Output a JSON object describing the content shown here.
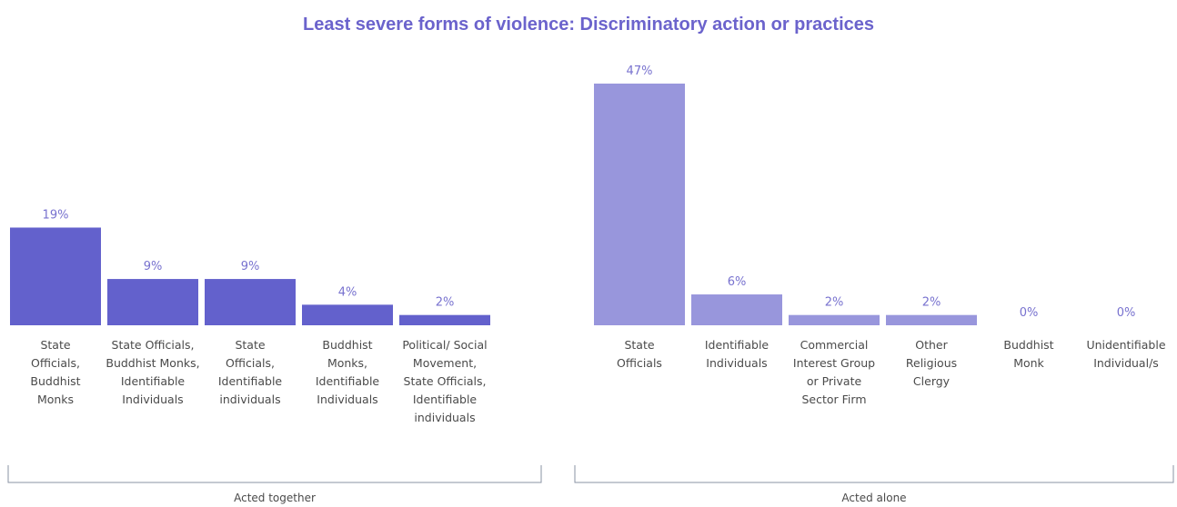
{
  "chart_data": {
    "type": "bar",
    "title": "Least severe forms of violence:  Discriminatory action or practices",
    "ylim": [
      0,
      50
    ],
    "grid": false,
    "unit": "%",
    "groups": [
      {
        "name": "Acted together",
        "color": "#6361cc",
        "categories": [
          [
            "State",
            "Officials,",
            "Buddhist",
            "Monks"
          ],
          [
            "State Officials,",
            "Buddhist Monks,",
            "Identifiable",
            "Individuals"
          ],
          [
            "State",
            "Officials,",
            "Identifiable",
            "individuals"
          ],
          [
            "Buddhist",
            "Monks,",
            "Identifiable",
            "Individuals"
          ],
          [
            "Political/ Social",
            "Movement,",
            "State Officials,",
            "Identifiable",
            "individuals"
          ]
        ],
        "values": [
          19,
          9,
          9,
          4,
          2
        ],
        "labels": [
          "19%",
          "9%",
          "9%",
          "4%",
          "2%"
        ]
      },
      {
        "name": "Acted alone",
        "color": "#9896dc",
        "categories": [
          [
            "State",
            "Officials"
          ],
          [
            "Identifiable",
            "Individuals"
          ],
          [
            "Commercial",
            "Interest Group",
            "or Private",
            "Sector Firm"
          ],
          [
            "Other",
            "Religious",
            "Clergy"
          ],
          [
            "Buddhist",
            "Monk"
          ],
          [
            "Unidentifiable",
            "Individual/s"
          ]
        ],
        "values": [
          47,
          6,
          2,
          2,
          0,
          0
        ],
        "labels": [
          "47%",
          "6%",
          "2%",
          "2%",
          "0%",
          "0%"
        ]
      }
    ]
  }
}
